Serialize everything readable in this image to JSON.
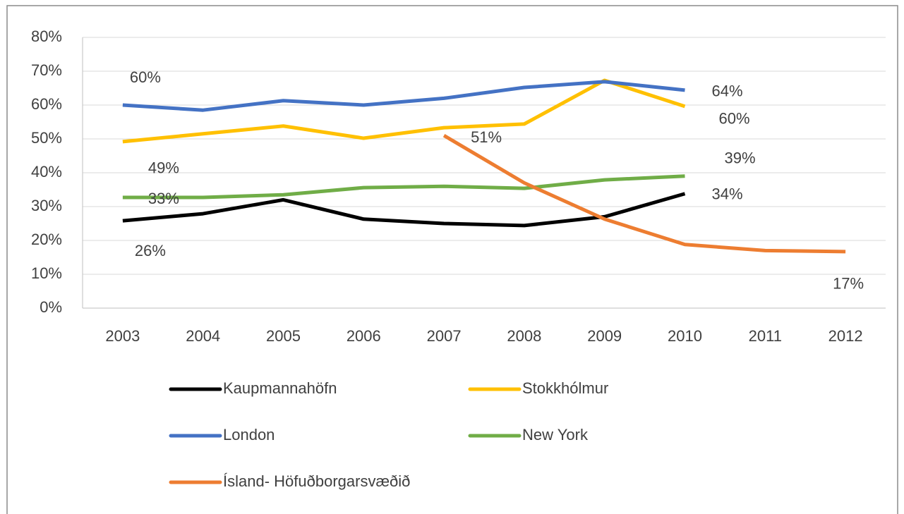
{
  "chart_data": {
    "type": "line",
    "categories": [
      "2003",
      "2004",
      "2005",
      "2006",
      "2007",
      "2008",
      "2009",
      "2010",
      "2011",
      "2012"
    ],
    "ylim": [
      0,
      80
    ],
    "yticks": [
      {
        "value": 0,
        "label": "0%"
      },
      {
        "value": 10,
        "label": "10%"
      },
      {
        "value": 20,
        "label": "20%"
      },
      {
        "value": 30,
        "label": "30%"
      },
      {
        "value": 40,
        "label": "40%"
      },
      {
        "value": 50,
        "label": "50%"
      },
      {
        "value": 60,
        "label": "60%"
      },
      {
        "value": 70,
        "label": "70%"
      },
      {
        "value": 80,
        "label": "80%"
      }
    ],
    "grid": true,
    "series": [
      {
        "name": "Kaupmannahöfn",
        "color": "#000000",
        "values": [
          25.8,
          27.9,
          32,
          26.3,
          25,
          24.4,
          27,
          33.8,
          null,
          null
        ],
        "value_labels": [
          "26%",
          null,
          null,
          null,
          null,
          null,
          null,
          "34%",
          null,
          null
        ]
      },
      {
        "name": "Stokkhólmur",
        "color": "#ffc000",
        "values": [
          49.2,
          51.5,
          53.8,
          50.2,
          53.3,
          54.4,
          67.3,
          59.6,
          null,
          null
        ],
        "value_labels": [
          "49%",
          null,
          null,
          null,
          null,
          null,
          null,
          "60%",
          null,
          null
        ]
      },
      {
        "name": "London",
        "color": "#4472c4",
        "values": [
          60,
          58.5,
          61.3,
          60,
          62,
          65.2,
          66.9,
          64.4,
          null,
          null
        ],
        "value_labels": [
          "60%",
          null,
          null,
          null,
          null,
          null,
          null,
          "64%",
          null,
          null
        ]
      },
      {
        "name": "New York",
        "color": "#70ad47",
        "values": [
          32.7,
          32.7,
          33.5,
          35.6,
          36,
          35.4,
          37.9,
          39,
          null,
          null
        ],
        "value_labels": [
          "33%",
          null,
          null,
          null,
          null,
          null,
          null,
          "39%",
          null,
          null
        ]
      },
      {
        "name": "Ísland- Höfuðborgarsvæðið",
        "color": "#ed7d31",
        "values": [
          null,
          null,
          null,
          null,
          51,
          37,
          26.3,
          18.8,
          17,
          16.7
        ],
        "value_labels": [
          null,
          null,
          null,
          null,
          "51%",
          null,
          null,
          null,
          null,
          "17%"
        ]
      }
    ]
  }
}
